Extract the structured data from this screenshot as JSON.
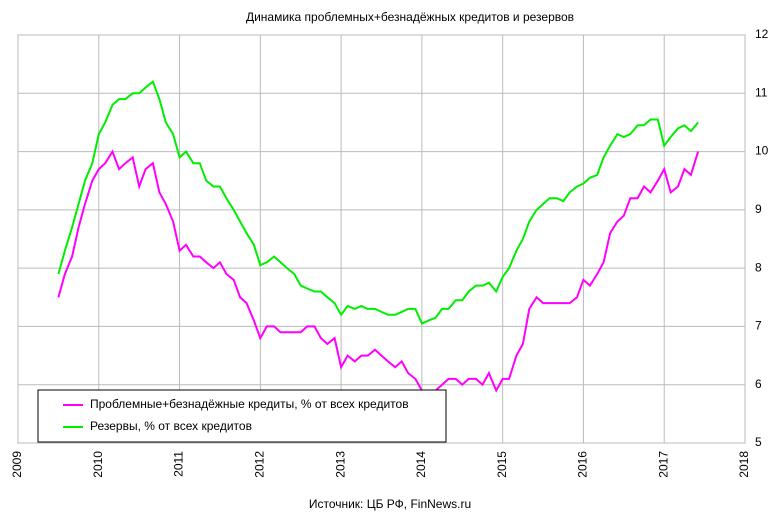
{
  "chart_data": {
    "type": "line",
    "title": "Динамика проблемных+безнадёжных кредитов и резервов",
    "source": "Источник: ЦБ РФ, FinNews.ru",
    "x": [
      2009.5,
      2009.58,
      2009.67,
      2009.75,
      2009.83,
      2009.92,
      2010,
      2010.08,
      2010.17,
      2010.25,
      2010.33,
      2010.42,
      2010.5,
      2010.58,
      2010.67,
      2010.75,
      2010.83,
      2010.92,
      2011,
      2011.08,
      2011.17,
      2011.25,
      2011.33,
      2011.42,
      2011.5,
      2011.58,
      2011.67,
      2011.75,
      2011.83,
      2011.92,
      2012,
      2012.08,
      2012.17,
      2012.25,
      2012.33,
      2012.42,
      2012.5,
      2012.58,
      2012.67,
      2012.75,
      2012.83,
      2012.92,
      2013,
      2013.08,
      2013.17,
      2013.25,
      2013.33,
      2013.42,
      2013.5,
      2013.58,
      2013.67,
      2013.75,
      2013.83,
      2013.92,
      2014,
      2014.08,
      2014.17,
      2014.25,
      2014.33,
      2014.42,
      2014.5,
      2014.58,
      2014.67,
      2014.75,
      2014.83,
      2014.92,
      2015,
      2015.08,
      2015.17,
      2015.25,
      2015.33,
      2015.42,
      2015.5,
      2015.58,
      2015.67,
      2015.75,
      2015.83,
      2015.92,
      2016,
      2016.08,
      2016.17,
      2016.25,
      2016.33,
      2016.42,
      2016.5,
      2016.58,
      2016.67,
      2016.75,
      2016.83,
      2016.92,
      2017,
      2017.08,
      2017.17,
      2017.25,
      2017.33,
      2017.42
    ],
    "series": [
      {
        "name": "Проблемные+безнадёжные кредиты, % от всех кредитов",
        "color": "#ff00ff",
        "values": [
          7.5,
          7.9,
          8.2,
          8.7,
          9.1,
          9.5,
          9.7,
          9.8,
          10.0,
          9.7,
          9.8,
          9.9,
          9.4,
          9.7,
          9.8,
          9.3,
          9.1,
          8.8,
          8.3,
          8.4,
          8.2,
          8.2,
          8.1,
          8.0,
          8.1,
          7.9,
          7.8,
          7.5,
          7.4,
          7.1,
          6.8,
          7.0,
          7.0,
          6.9,
          6.9,
          6.9,
          6.9,
          7.0,
          7.0,
          6.8,
          6.7,
          6.8,
          6.3,
          6.5,
          6.4,
          6.5,
          6.5,
          6.6,
          6.5,
          6.4,
          6.3,
          6.4,
          6.2,
          6.1,
          5.9,
          5.9,
          5.9,
          6.0,
          6.1,
          6.1,
          6.0,
          6.1,
          6.1,
          6.0,
          6.2,
          5.9,
          6.1,
          6.1,
          6.5,
          6.7,
          7.3,
          7.5,
          7.4,
          7.4,
          7.4,
          7.4,
          7.4,
          7.5,
          7.8,
          7.7,
          7.9,
          8.1,
          8.6,
          8.8,
          8.9,
          9.2,
          9.2,
          9.4,
          9.3,
          9.5,
          9.7,
          9.3,
          9.4,
          9.7,
          9.6,
          10.0
        ]
      },
      {
        "name": "Резервы, % от всех кредитов",
        "color": "#00ee00",
        "values": [
          7.9,
          8.3,
          8.7,
          9.1,
          9.5,
          9.8,
          10.3,
          10.5,
          10.8,
          10.9,
          10.9,
          11.0,
          11.0,
          11.1,
          11.2,
          10.9,
          10.5,
          10.3,
          9.9,
          10.0,
          9.8,
          9.8,
          9.5,
          9.4,
          9.4,
          9.2,
          9.0,
          8.8,
          8.6,
          8.4,
          8.05,
          8.1,
          8.2,
          8.1,
          8.0,
          7.9,
          7.7,
          7.65,
          7.6,
          7.6,
          7.5,
          7.4,
          7.2,
          7.35,
          7.3,
          7.35,
          7.3,
          7.3,
          7.25,
          7.2,
          7.2,
          7.25,
          7.3,
          7.3,
          7.05,
          7.1,
          7.15,
          7.3,
          7.3,
          7.45,
          7.45,
          7.6,
          7.7,
          7.7,
          7.75,
          7.6,
          7.85,
          8.0,
          8.3,
          8.5,
          8.8,
          9.0,
          9.1,
          9.2,
          9.2,
          9.15,
          9.3,
          9.4,
          9.45,
          9.55,
          9.6,
          9.9,
          10.1,
          10.3,
          10.25,
          10.3,
          10.45,
          10.45,
          10.55,
          10.55,
          10.1,
          10.25,
          10.4,
          10.45,
          10.35,
          10.5
        ]
      }
    ],
    "xlim": [
      2009,
      2018
    ],
    "xticks": [
      2009,
      2010,
      2011,
      2012,
      2013,
      2014,
      2015,
      2016,
      2017,
      2018
    ],
    "ylim": [
      5,
      12
    ],
    "yticks": [
      5,
      6,
      7,
      8,
      9,
      10,
      11,
      12
    ],
    "grid": true,
    "legend": "lower left"
  }
}
